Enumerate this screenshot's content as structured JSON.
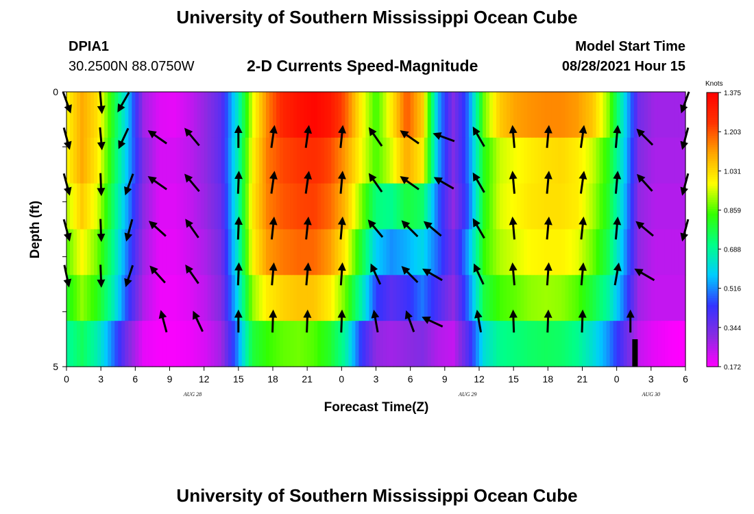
{
  "header": {
    "title": "University of Southern Mississippi Ocean Cube",
    "station": "DPIA1",
    "coordinates": "30.2500N  88.0750W",
    "subtitle": "2-D Currents Speed-Magnitude",
    "model_start_label": "Model Start Time",
    "model_start_value": "08/28/2021 Hour 15"
  },
  "footer": {
    "title": "University of Southern Mississippi Ocean Cube"
  },
  "colors": {
    "ramp": [
      "#ff00ff",
      "#8a2be2",
      "#3333ff",
      "#00ccff",
      "#00ff88",
      "#33ff00",
      "#ffff00",
      "#ffa500",
      "#ff3300",
      "#ff0000"
    ]
  },
  "chart_data": {
    "type": "heatmap",
    "xlabel": "Forecast Time(Z)",
    "ylabel": "Depth (ft)",
    "x_tick_labels": [
      "0",
      "3",
      "6",
      "9",
      "12",
      "15",
      "18",
      "21",
      "0",
      "3",
      "6",
      "9",
      "12",
      "15",
      "18",
      "21",
      "0",
      "3",
      "6"
    ],
    "x_hours": [
      0,
      3,
      6,
      9,
      12,
      15,
      18,
      21,
      24,
      27,
      30,
      33,
      36,
      39,
      42,
      45,
      48,
      51,
      54
    ],
    "date_labels": [
      {
        "text": "AUG  28",
        "at_hour": 11
      },
      {
        "text": "AUG  29",
        "at_hour": 35
      },
      {
        "text": "AUG  30",
        "at_hour": 51
      }
    ],
    "y_tick_labels": [
      "0",
      "5"
    ],
    "ylim": [
      0,
      5
    ],
    "colorbar": {
      "title": "Knots",
      "tick_labels": [
        "1.375",
        "1.203",
        "1.031",
        "0.859",
        "0.688",
        "0.516",
        "0.344",
        "0.172"
      ],
      "range": [
        0.172,
        1.375
      ]
    },
    "depth_layers_ft": [
      0,
      1,
      2,
      3,
      4,
      5
    ],
    "speed_knots": [
      [
        0.98,
        1.1,
        1.02,
        0.8,
        0.56,
        0.28,
        0.21,
        0.2,
        0.24,
        0.3,
        0.38,
        0.62,
        0.95,
        1.15,
        1.28,
        1.33,
        1.36,
        1.32,
        1.2,
        1.0,
        0.84,
        1.0,
        1.2,
        1.05,
        0.55,
        0.32,
        0.5,
        0.88,
        1.05,
        1.11,
        1.13,
        1.14,
        1.14,
        1.12,
        1.06,
        0.9,
        0.62,
        0.34,
        0.28,
        0.28,
        0.28
      ],
      [
        0.98,
        1.1,
        1.0,
        0.78,
        0.55,
        0.32,
        0.22,
        0.22,
        0.25,
        0.3,
        0.38,
        0.64,
        0.98,
        1.16,
        1.22,
        1.24,
        1.26,
        1.22,
        1.12,
        0.98,
        0.85,
        0.95,
        1.1,
        1.0,
        0.55,
        0.32,
        0.5,
        0.82,
        0.94,
        0.97,
        1.0,
        1.02,
        1.03,
        1.0,
        0.94,
        0.82,
        0.6,
        0.32,
        0.27,
        0.27,
        0.27
      ],
      [
        0.92,
        1.05,
        0.95,
        0.74,
        0.52,
        0.3,
        0.21,
        0.21,
        0.24,
        0.29,
        0.36,
        0.64,
        1.0,
        1.15,
        1.2,
        1.22,
        1.23,
        1.18,
        1.08,
        0.9,
        0.72,
        0.7,
        0.78,
        0.74,
        0.48,
        0.3,
        0.48,
        0.82,
        0.95,
        0.98,
        1.01,
        1.02,
        1.02,
        1.0,
        0.92,
        0.8,
        0.58,
        0.3,
        0.26,
        0.26,
        0.26
      ],
      [
        0.86,
        0.98,
        0.88,
        0.7,
        0.48,
        0.28,
        0.2,
        0.2,
        0.23,
        0.27,
        0.34,
        0.62,
        0.98,
        1.12,
        1.16,
        1.18,
        1.18,
        1.12,
        1.0,
        0.8,
        0.58,
        0.52,
        0.55,
        0.6,
        0.48,
        0.34,
        0.55,
        0.84,
        0.92,
        0.95,
        0.98,
        0.99,
        0.99,
        0.96,
        0.88,
        0.76,
        0.55,
        0.3,
        0.25,
        0.25,
        0.25
      ],
      [
        0.8,
        0.9,
        0.82,
        0.66,
        0.44,
        0.26,
        0.19,
        0.19,
        0.21,
        0.25,
        0.32,
        0.58,
        0.9,
        1.0,
        1.04,
        1.06,
        1.06,
        1.0,
        0.88,
        0.68,
        0.45,
        0.38,
        0.42,
        0.5,
        0.4,
        0.3,
        0.5,
        0.78,
        0.85,
        0.87,
        0.9,
        0.91,
        0.9,
        0.86,
        0.78,
        0.68,
        0.5,
        0.28,
        0.24,
        0.24,
        0.24
      ],
      [
        0.68,
        0.75,
        0.66,
        0.5,
        0.32,
        0.2,
        0.18,
        0.18,
        0.19,
        0.22,
        0.28,
        0.5,
        0.78,
        0.84,
        0.87,
        0.88,
        0.86,
        0.8,
        0.68,
        0.45,
        0.3,
        0.28,
        0.3,
        0.32,
        0.26,
        0.24,
        0.4,
        0.62,
        0.7,
        0.72,
        0.74,
        0.75,
        0.74,
        0.7,
        0.62,
        0.52,
        0.38,
        0.24,
        0.2,
        0.18,
        0.17
      ]
    ],
    "arrow_rows_depth_ft": [
      0,
      1,
      2,
      3,
      4,
      5
    ],
    "arrows": [
      [
        {
          "h": 0,
          "dir": 160
        },
        {
          "h": 3,
          "dir": 175
        },
        {
          "h": 5,
          "dir": 210
        },
        {
          "h": 54,
          "dir": 200
        }
      ],
      [
        {
          "h": 0,
          "dir": 165
        },
        {
          "h": 3,
          "dir": 175
        },
        {
          "h": 5,
          "dir": 205
        },
        {
          "h": 8,
          "dir": 305
        },
        {
          "h": 11,
          "dir": 320
        },
        {
          "h": 15,
          "dir": 0
        },
        {
          "h": 18,
          "dir": 8
        },
        {
          "h": 21,
          "dir": 8
        },
        {
          "h": 24,
          "dir": 6
        },
        {
          "h": 27,
          "dir": 325
        },
        {
          "h": 30,
          "dir": 305
        },
        {
          "h": 33,
          "dir": 290
        },
        {
          "h": 36,
          "dir": 330
        },
        {
          "h": 39,
          "dir": 355
        },
        {
          "h": 42,
          "dir": 5
        },
        {
          "h": 45,
          "dir": 8
        },
        {
          "h": 48,
          "dir": 5
        },
        {
          "h": 50.5,
          "dir": 315
        },
        {
          "h": 54,
          "dir": 195
        }
      ],
      [
        {
          "h": 0,
          "dir": 165
        },
        {
          "h": 3,
          "dir": 178
        },
        {
          "h": 5.5,
          "dir": 200
        },
        {
          "h": 8,
          "dir": 305
        },
        {
          "h": 11,
          "dir": 320
        },
        {
          "h": 15,
          "dir": 2
        },
        {
          "h": 18,
          "dir": 8
        },
        {
          "h": 21,
          "dir": 8
        },
        {
          "h": 24,
          "dir": 5
        },
        {
          "h": 27,
          "dir": 325
        },
        {
          "h": 30,
          "dir": 305
        },
        {
          "h": 33,
          "dir": 300
        },
        {
          "h": 36,
          "dir": 330
        },
        {
          "h": 39,
          "dir": 355
        },
        {
          "h": 42,
          "dir": 5
        },
        {
          "h": 45,
          "dir": 8
        },
        {
          "h": 48,
          "dir": 5
        },
        {
          "h": 50.5,
          "dir": 318
        },
        {
          "h": 54,
          "dir": 195
        }
      ],
      [
        {
          "h": 0,
          "dir": 165
        },
        {
          "h": 3,
          "dir": 178
        },
        {
          "h": 5.5,
          "dir": 195
        },
        {
          "h": 8,
          "dir": 312
        },
        {
          "h": 11,
          "dir": 325
        },
        {
          "h": 15,
          "dir": 2
        },
        {
          "h": 18,
          "dir": 6
        },
        {
          "h": 21,
          "dir": 6
        },
        {
          "h": 24,
          "dir": 5
        },
        {
          "h": 27,
          "dir": 320
        },
        {
          "h": 30,
          "dir": 315
        },
        {
          "h": 32,
          "dir": 310
        },
        {
          "h": 36,
          "dir": 330
        },
        {
          "h": 39,
          "dir": 355
        },
        {
          "h": 42,
          "dir": 5
        },
        {
          "h": 45,
          "dir": 6
        },
        {
          "h": 48,
          "dir": 5
        },
        {
          "h": 50.5,
          "dir": 310
        },
        {
          "h": 54,
          "dir": 195
        }
      ],
      [
        {
          "h": 0,
          "dir": 168
        },
        {
          "h": 3,
          "dir": 178
        },
        {
          "h": 5.5,
          "dir": 198
        },
        {
          "h": 8,
          "dir": 318
        },
        {
          "h": 11,
          "dir": 325
        },
        {
          "h": 15,
          "dir": 2
        },
        {
          "h": 18,
          "dir": 5
        },
        {
          "h": 21,
          "dir": 5
        },
        {
          "h": 24,
          "dir": 4
        },
        {
          "h": 27,
          "dir": 335
        },
        {
          "h": 30,
          "dir": 315
        },
        {
          "h": 32,
          "dir": 300
        },
        {
          "h": 36,
          "dir": 335
        },
        {
          "h": 39,
          "dir": 355
        },
        {
          "h": 42,
          "dir": 4
        },
        {
          "h": 45,
          "dir": 5
        },
        {
          "h": 48,
          "dir": 10
        },
        {
          "h": 50.5,
          "dir": 300
        }
      ],
      [
        {
          "h": 8.5,
          "dir": 345
        },
        {
          "h": 11.5,
          "dir": 335
        },
        {
          "h": 15,
          "dir": 0
        },
        {
          "h": 18,
          "dir": 2
        },
        {
          "h": 21,
          "dir": 2
        },
        {
          "h": 24,
          "dir": 2
        },
        {
          "h": 27,
          "dir": 350
        },
        {
          "h": 30,
          "dir": 340
        },
        {
          "h": 32,
          "dir": 295
        },
        {
          "h": 36,
          "dir": 350
        },
        {
          "h": 39,
          "dir": 358
        },
        {
          "h": 42,
          "dir": 2
        },
        {
          "h": 45,
          "dir": 2
        },
        {
          "h": 49.2,
          "dir": 0
        }
      ]
    ]
  }
}
